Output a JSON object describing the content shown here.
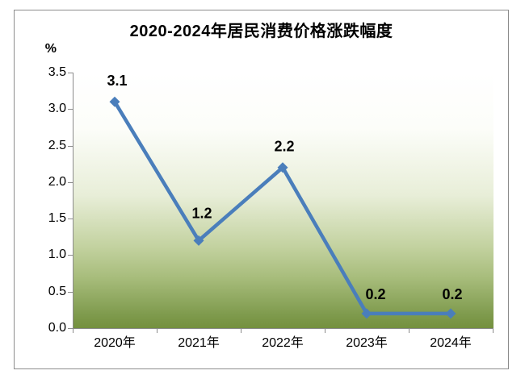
{
  "chart_data": {
    "type": "line",
    "title": "2020-2024年居民消费价格涨跌幅度",
    "unit_label": "%",
    "xlabel": "",
    "ylabel": "%",
    "categories": [
      "2020年",
      "2021年",
      "2022年",
      "2023年",
      "2024年"
    ],
    "values": [
      3.1,
      1.2,
      2.2,
      0.2,
      0.2
    ],
    "data_labels": [
      "3.1",
      "1.2",
      "2.2",
      "0.2",
      "0.2"
    ],
    "y_ticks": [
      "3.5",
      "3.0",
      "2.5",
      "2.0",
      "1.5",
      "1.0",
      "0.5",
      "0.0"
    ],
    "ylim": [
      0,
      3.5
    ],
    "y_tick_step": 0.5,
    "grid": false,
    "legend": "none",
    "marker_style": "diamond",
    "colors": {
      "line": "#4A7EBB",
      "marker": "#4A7EBB",
      "label_text": "#000000",
      "axis": "#8C8C8C",
      "chart_border": "#8C8C8C",
      "plot_gradient": [
        "#FFFFFF 0%",
        "#FCFDF9 22%",
        "#E8EED8 48%",
        "#C3D2A0 68%",
        "#A8BD7C 80%",
        "#7E9A4C 95%",
        "#74903E 100%"
      ]
    }
  }
}
